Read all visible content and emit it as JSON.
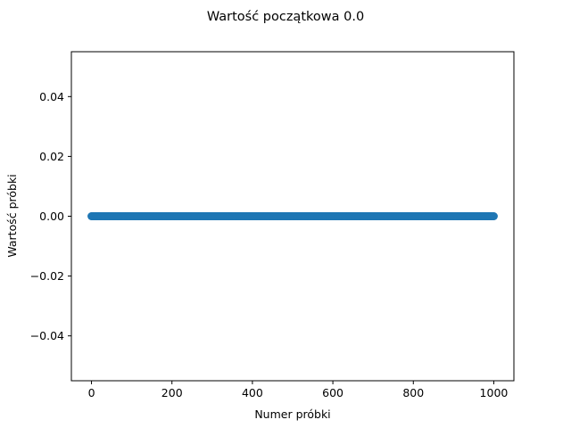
{
  "figure": {
    "title": "Wartość początkowa 0.0"
  },
  "chart_data": {
    "type": "scatter",
    "title": "Wartość początkowa 0.0",
    "xlabel": "Numer próbki",
    "ylabel": "Wartość próbki",
    "xlim": [
      -50,
      1050
    ],
    "ylim": [
      -0.055,
      0.055
    ],
    "x_ticks": [
      0,
      200,
      400,
      600,
      800,
      1000
    ],
    "x_tick_labels": [
      "0",
      "200",
      "400",
      "600",
      "800",
      "1000"
    ],
    "y_ticks": [
      0.04,
      0.02,
      0.0,
      -0.02,
      -0.04
    ],
    "y_tick_labels": [
      "0.04",
      "0.02",
      "0.00",
      "−0.02",
      "−0.04"
    ],
    "grid": false,
    "series": [
      {
        "color": "#1f77b4",
        "x_start": 0,
        "x_end": 1000,
        "x_step": 1,
        "y_constant": 0.0
      }
    ]
  },
  "colors": {
    "series": "#1f77b4",
    "axes": "#000000",
    "background": "#ffffff"
  }
}
